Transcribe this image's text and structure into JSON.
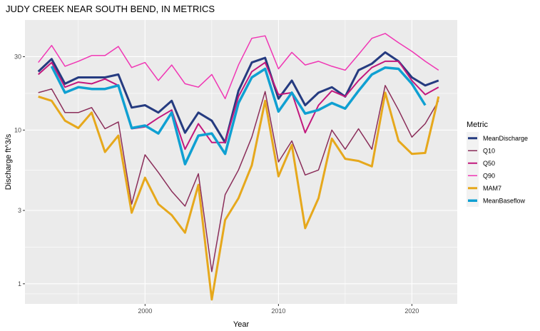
{
  "chart_data": {
    "type": "line",
    "title": "JUDY CREEK NEAR SOUTH BEND, IN  METRICS",
    "xlabel": "Year",
    "ylabel": "Discharge ft^3/s",
    "y_scale": "log10",
    "xlim": [
      1991.0,
      2023.4
    ],
    "ylim": [
      0.74,
      52
    ],
    "x_ticks": [
      2000,
      2010,
      2020
    ],
    "x_ticks_minor": [
      1995,
      2005,
      2015
    ],
    "y_ticks": [
      1,
      3,
      10,
      30
    ],
    "y_tick_labels": [
      "1",
      "3",
      "10",
      "30"
    ],
    "panel_background": "#ebebeb",
    "grid": true,
    "legend": {
      "title": "Metric",
      "placement": "right"
    },
    "x": [
      1992,
      1993,
      1994,
      1995,
      1996,
      1997,
      1998,
      1999,
      2000,
      2001,
      2002,
      2003,
      2004,
      2005,
      2006,
      2007,
      2008,
      2009,
      2010,
      2011,
      2012,
      2013,
      2014,
      2015,
      2016,
      2017,
      2018,
      2019,
      2020,
      2021,
      2022
    ],
    "series": [
      {
        "name": "MeanDischarge",
        "color": "#253b80",
        "width": 3,
        "values": [
          24,
          29,
          20,
          22,
          22,
          22,
          23,
          14,
          14.5,
          13,
          15.5,
          9.6,
          13,
          11.5,
          8.3,
          18,
          27.5,
          29.5,
          16,
          21,
          14.5,
          17.5,
          19,
          16.5,
          24.5,
          27,
          32,
          28,
          22,
          19.5,
          21
        ]
      },
      {
        "name": "Q10",
        "color": "#8b2e5a",
        "width": 1.5,
        "values": [
          17.5,
          18.5,
          13,
          13,
          14,
          10.2,
          11.3,
          3.3,
          6.9,
          5.3,
          4,
          3.2,
          5.2,
          1.2,
          3.8,
          5.5,
          9,
          17.8,
          6.2,
          8.5,
          5.1,
          5.5,
          10,
          7.5,
          10.2,
          7.5,
          19.5,
          13.5,
          9,
          11,
          15.5
        ]
      },
      {
        "name": "Q50",
        "color": "#c2187d",
        "width": 2,
        "values": [
          23,
          27.5,
          19,
          20.5,
          20,
          21.5,
          19.5,
          10.2,
          10.5,
          12,
          13.5,
          7.5,
          11,
          8.3,
          8.3,
          16.5,
          24,
          27.5,
          17,
          17.5,
          9.6,
          14.5,
          18,
          16.5,
          21,
          25.5,
          28,
          28,
          21,
          17,
          19
        ]
      },
      {
        "name": "Q90",
        "color": "#f036b4",
        "width": 1.5,
        "values": [
          27.5,
          35.5,
          26,
          28,
          30.5,
          30.5,
          35,
          25.5,
          27.5,
          21,
          26.5,
          20,
          19,
          23,
          16,
          26.5,
          39.5,
          41,
          25,
          32,
          26.5,
          28,
          26,
          24.5,
          31,
          39.5,
          42.5,
          37,
          32.5,
          28,
          24.5
        ]
      },
      {
        "name": "MAM7",
        "color": "#e6a81c",
        "width": 3,
        "values": [
          16.5,
          15.5,
          11.5,
          10.3,
          13,
          7.2,
          9.2,
          2.9,
          4.9,
          3.3,
          2.8,
          2.15,
          4.4,
          0.79,
          2.6,
          3.6,
          5.9,
          15.5,
          5,
          8,
          2.3,
          3.6,
          8.8,
          6.5,
          6.3,
          5.8,
          17.5,
          8.5,
          7,
          7.1,
          16.5
        ]
      },
      {
        "name": "MeanBaseflow",
        "color": "#0fa0d2",
        "width": 3.5,
        "values": [
          null,
          26,
          17.5,
          19,
          18.5,
          18.5,
          19.5,
          10.3,
          10.7,
          9.5,
          13,
          6,
          9.2,
          9.5,
          7,
          15,
          22,
          25,
          13.2,
          17.5,
          12.8,
          13.5,
          15,
          13.8,
          18,
          23,
          25.5,
          25,
          20,
          14.5,
          null
        ]
      }
    ]
  }
}
